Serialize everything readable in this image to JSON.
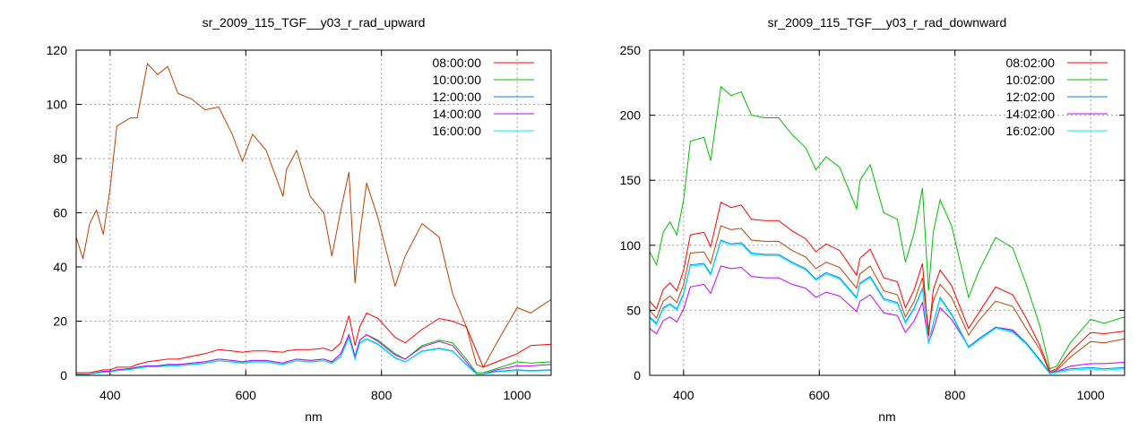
{
  "chart_data": [
    {
      "type": "line",
      "title": "sr_2009_115_TGF__y03_r_rad_upward",
      "xlabel": "nm",
      "ylabel": "",
      "xlim": [
        350,
        1050
      ],
      "ylim": [
        0,
        120
      ],
      "xticks": [
        400,
        600,
        800,
        1000
      ],
      "yticks": [
        0,
        20,
        40,
        60,
        80,
        100,
        120
      ],
      "grid": true,
      "legend_position": "top-right",
      "x": [
        350,
        360,
        370,
        380,
        390,
        400,
        410,
        430,
        440,
        455,
        470,
        485,
        500,
        520,
        540,
        560,
        580,
        595,
        610,
        630,
        655,
        660,
        675,
        695,
        715,
        727,
        740,
        752,
        761,
        768,
        778,
        795,
        820,
        835,
        860,
        885,
        905,
        925,
        940,
        950,
        970,
        1000,
        1020,
        1050
      ],
      "series": [
        {
          "name": "08:00:00",
          "color": "#ff0000",
          "values": [
            1,
            1,
            1,
            1.5,
            2,
            2,
            3,
            3,
            4,
            5,
            5.5,
            6,
            6,
            7,
            8,
            9.5,
            9,
            8.5,
            9,
            9,
            8.5,
            9,
            9.5,
            9.5,
            10,
            9,
            12,
            22,
            11,
            18,
            23,
            21,
            14,
            12,
            17,
            21,
            20,
            18,
            9,
            3,
            5,
            8,
            11,
            11.5
          ]
        },
        {
          "name": "10:00:00",
          "color": "#00c000",
          "values": [
            0.5,
            0.5,
            0.5,
            1,
            1.5,
            1.5,
            2,
            2.5,
            3,
            3.5,
            3.5,
            4,
            4,
            4.5,
            5,
            6,
            5.5,
            5,
            5.5,
            5.5,
            4.5,
            5,
            6,
            5.5,
            6,
            5,
            8,
            15,
            7,
            13,
            15,
            13,
            8,
            6,
            11,
            13,
            12,
            6,
            1,
            1,
            2.5,
            5,
            4.5,
            5
          ]
        },
        {
          "name": "12:00:00",
          "color": "#0080ff",
          "values": [
            0.3,
            0.3,
            0.4,
            0.8,
            1.2,
            1.3,
            1.8,
            2.2,
            2.7,
            3.2,
            3.2,
            3.6,
            3.6,
            4,
            4.5,
            5.4,
            5,
            4.5,
            5,
            5,
            4,
            4.5,
            5.4,
            5,
            5.4,
            4.5,
            7,
            14,
            6,
            12,
            13.5,
            11.5,
            6.5,
            5,
            9,
            10,
            9,
            4,
            0.5,
            0.5,
            1.5,
            2,
            1.8,
            2
          ]
        },
        {
          "name": "14:00:00",
          "color": "#c000ff",
          "values": [
            0.5,
            0.5,
            0.5,
            1,
            1.5,
            1.5,
            2,
            2.5,
            3,
            3.5,
            3.5,
            4,
            4,
            4.5,
            5,
            6,
            5.5,
            5,
            5.5,
            5.5,
            4.5,
            5,
            6,
            5.5,
            6,
            5,
            8,
            15,
            7,
            13,
            15,
            12.5,
            7.5,
            6,
            10.5,
            12.5,
            11,
            5,
            0.5,
            0.5,
            2,
            3.5,
            3.5,
            4
          ]
        },
        {
          "name": "16:00:00",
          "color": "#00eeee",
          "values": [
            0.3,
            0.3,
            0.4,
            0.8,
            1.1,
            1.2,
            1.7,
            2.1,
            2.6,
            3.1,
            3.1,
            3.5,
            3.5,
            3.9,
            4.4,
            5.3,
            4.9,
            4.4,
            4.9,
            4.9,
            3.9,
            4.4,
            5.3,
            4.9,
            5.3,
            4.4,
            6.8,
            13.8,
            5.9,
            11.8,
            13.3,
            11.3,
            6.3,
            4.9,
            8.8,
            9.8,
            8.8,
            3.8,
            0.4,
            0.4,
            1.3,
            1.8,
            1.6,
            1.8
          ]
        },
        {
          "name": "",
          "color": "#c04000",
          "values": [
            51,
            43,
            56,
            61,
            52,
            69,
            92,
            95,
            95,
            115,
            111,
            114,
            104,
            102,
            98,
            99,
            89,
            79,
            89,
            83,
            66,
            76,
            83,
            66,
            60,
            44,
            61,
            75,
            34,
            52,
            71,
            58,
            33,
            44,
            56,
            51,
            30,
            18,
            4,
            3,
            12,
            25,
            23,
            28
          ]
        }
      ]
    },
    {
      "type": "line",
      "title": "sr_2009_115_TGF__y03_r_rad_downward",
      "xlabel": "nm",
      "ylabel": "",
      "xlim": [
        350,
        1050
      ],
      "ylim": [
        0,
        250
      ],
      "xticks": [
        400,
        600,
        800,
        1000
      ],
      "yticks": [
        0,
        50,
        100,
        150,
        200,
        250
      ],
      "grid": true,
      "legend_position": "top-right",
      "x": [
        350,
        360,
        370,
        380,
        390,
        400,
        410,
        430,
        440,
        455,
        470,
        485,
        500,
        520,
        540,
        560,
        580,
        595,
        610,
        630,
        655,
        660,
        675,
        695,
        715,
        727,
        740,
        752,
        761,
        768,
        778,
        795,
        820,
        835,
        860,
        885,
        905,
        925,
        940,
        950,
        970,
        1000,
        1020,
        1050
      ],
      "series": [
        {
          "name": "08:02:00",
          "color": "#ff0000",
          "values": [
            57,
            51,
            66,
            71,
            65,
            81,
            108,
            110,
            99,
            133,
            129,
            131,
            120,
            119,
            119,
            111,
            105,
            95,
            101,
            96,
            77,
            90,
            97,
            75,
            72,
            52,
            66,
            86,
            30,
            66,
            81,
            69,
            36,
            48,
            68,
            62,
            44,
            23,
            3,
            5,
            18,
            33,
            32,
            34
          ]
        },
        {
          "name": "10:02:00",
          "color": "#00c000",
          "values": [
            95,
            85,
            110,
            118,
            108,
            135,
            180,
            183,
            165,
            222,
            215,
            218,
            200,
            198,
            198,
            185,
            175,
            158,
            168,
            160,
            128,
            150,
            162,
            125,
            120,
            87,
            110,
            144,
            65,
            110,
            135,
            115,
            60,
            80,
            106,
            98,
            70,
            38,
            5,
            7,
            25,
            43,
            40,
            45
          ]
        },
        {
          "name": "12:02:00",
          "color": "#0080ff",
          "values": [
            45,
            40,
            52,
            55,
            51,
            63,
            85,
            86,
            78,
            104,
            101,
            102,
            94,
            93,
            93,
            87,
            82,
            74,
            79,
            75,
            60,
            71,
            76,
            59,
            56,
            41,
            52,
            67,
            25,
            40,
            60,
            47,
            22,
            28,
            37,
            34,
            25,
            12,
            2,
            3,
            5,
            6,
            5,
            6
          ]
        },
        {
          "name": "14:02:00",
          "color": "#c000ff",
          "values": [
            36,
            32,
            42,
            45,
            41,
            51,
            68,
            70,
            63,
            84,
            82,
            83,
            76,
            75,
            75,
            70,
            67,
            60,
            64,
            61,
            49,
            57,
            62,
            48,
            46,
            33,
            42,
            56,
            25,
            35,
            52,
            43,
            22,
            28,
            37,
            35,
            25,
            12,
            2,
            3,
            7,
            9,
            9,
            10
          ]
        },
        {
          "name": "16:02:00",
          "color": "#00eeee",
          "values": [
            44,
            39,
            51,
            54,
            50,
            62,
            84,
            85,
            77,
            103,
            100,
            101,
            93,
            92,
            92,
            86,
            81,
            73,
            78,
            74,
            59,
            70,
            75,
            58,
            55,
            40,
            51,
            66,
            24,
            39,
            59,
            46,
            21,
            27,
            36,
            33,
            24,
            11,
            1,
            2,
            4,
            5,
            4,
            5
          ]
        },
        {
          "name": "",
          "color": "#c04000",
          "values": [
            50,
            44,
            57,
            61,
            56,
            70,
            94,
            95,
            86,
            115,
            112,
            113,
            104,
            103,
            103,
            96,
            91,
            82,
            87,
            83,
            67,
            78,
            84,
            65,
            62,
            45,
            57,
            75,
            35,
            57,
            70,
            60,
            31,
            42,
            57,
            53,
            36,
            20,
            2,
            4,
            14,
            26,
            25,
            28
          ]
        }
      ]
    }
  ]
}
